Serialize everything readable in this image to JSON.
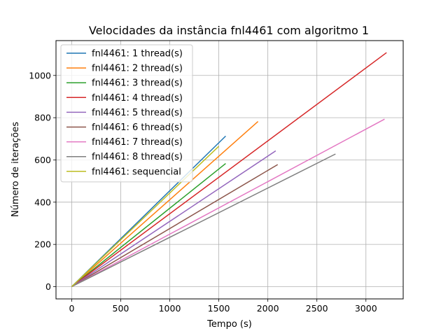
{
  "chart_data": {
    "type": "line",
    "title": "Velocidades da instância fnl4461 com algoritmo 1",
    "xlabel": "Tempo (s)",
    "ylabel": "Número de iterações",
    "xlim": [
      -160,
      3380
    ],
    "ylim": [
      -58,
      1165
    ],
    "xticks": [
      0,
      500,
      1000,
      1500,
      2000,
      2500,
      3000
    ],
    "yticks": [
      0,
      200,
      400,
      600,
      800,
      1000
    ],
    "grid": true,
    "legend_position": "top-left",
    "series": [
      {
        "name": "fnl4461: 1 thread(s)",
        "color": "#1f77b4",
        "x": [
          0,
          1570
        ],
        "y": [
          0,
          713
        ]
      },
      {
        "name": "fnl4461: 2 thread(s)",
        "color": "#ff7f0e",
        "x": [
          0,
          1900
        ],
        "y": [
          0,
          782
        ]
      },
      {
        "name": "fnl4461: 3 thread(s)",
        "color": "#2ca02c",
        "x": [
          0,
          1570
        ],
        "y": [
          0,
          583
        ]
      },
      {
        "name": "fnl4461: 4 thread(s)",
        "color": "#d62728",
        "x": [
          0,
          3210
        ],
        "y": [
          0,
          1108
        ]
      },
      {
        "name": "fnl4461: 5 thread(s)",
        "color": "#9467bd",
        "x": [
          0,
          2080
        ],
        "y": [
          0,
          643
        ]
      },
      {
        "name": "fnl4461: 6 thread(s)",
        "color": "#8c564b",
        "x": [
          0,
          2100
        ],
        "y": [
          0,
          578
        ]
      },
      {
        "name": "fnl4461: 7 thread(s)",
        "color": "#e377c2",
        "x": [
          0,
          3190
        ],
        "y": [
          0,
          793
        ]
      },
      {
        "name": "fnl4461: 8 thread(s)",
        "color": "#7f7f7f",
        "x": [
          0,
          2690
        ],
        "y": [
          0,
          628
        ]
      },
      {
        "name": "fnl4461: sequencial",
        "color": "#bcbd22",
        "x": [
          0,
          1500
        ],
        "y": [
          0,
          665
        ]
      }
    ]
  }
}
